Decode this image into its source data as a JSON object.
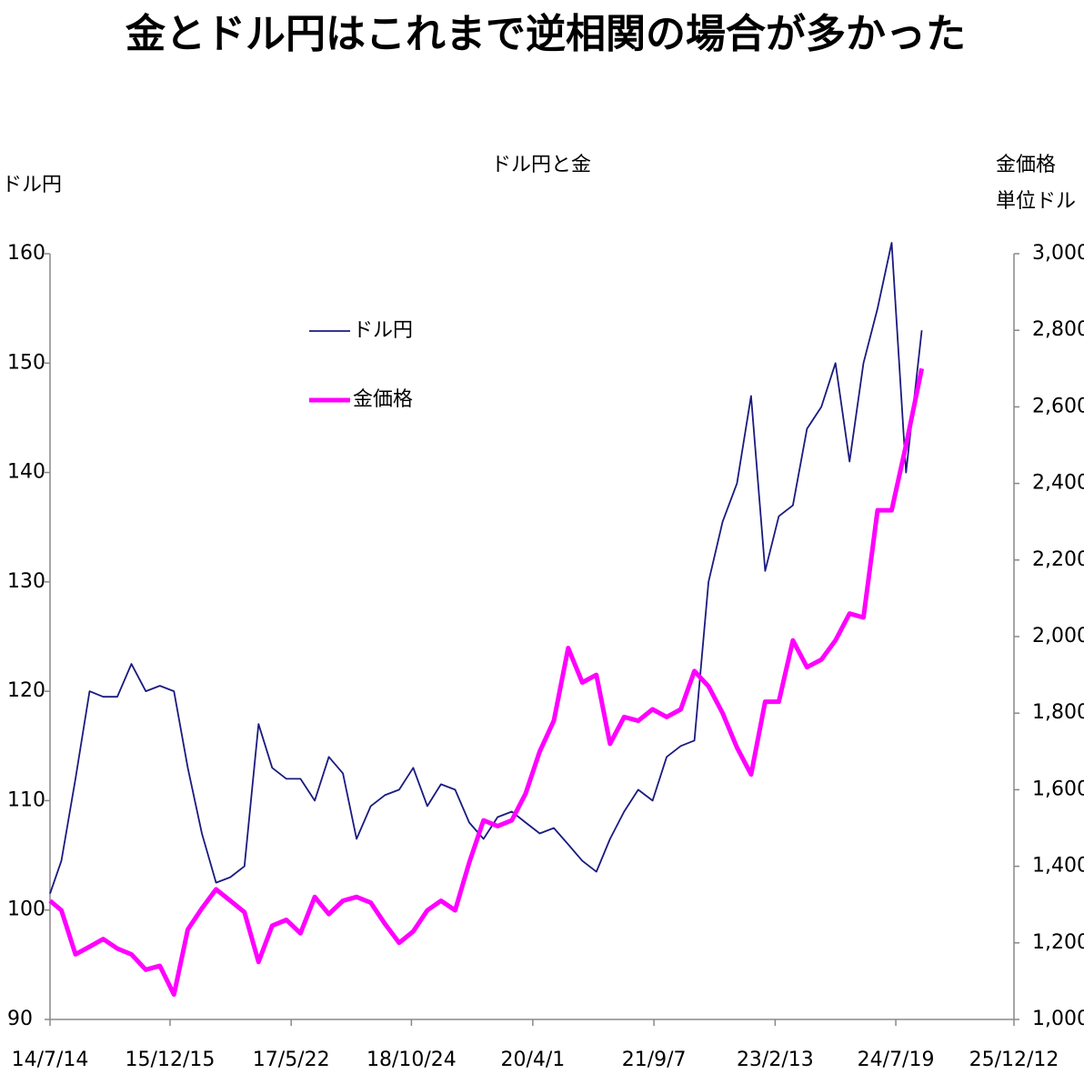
{
  "chart_data": {
    "type": "line",
    "title": "金とドル円はこれまで逆相関の場合が多かった",
    "subtitle": "ドル円と金",
    "ylabel": "ドル円",
    "y2label": [
      "金価格",
      "単位ドル"
    ],
    "x": [
      "14/7/14",
      "14/9/1",
      "14/11/1",
      "15/1/1",
      "15/3/1",
      "15/5/1",
      "15/7/1",
      "15/9/1",
      "15/11/1",
      "16/1/1",
      "16/3/1",
      "16/5/1",
      "16/7/1",
      "16/9/1",
      "16/11/1",
      "17/1/1",
      "17/3/1",
      "17/5/1",
      "17/7/1",
      "17/9/1",
      "17/11/1",
      "18/1/1",
      "18/3/1",
      "18/5/1",
      "18/7/1",
      "18/9/1",
      "18/11/1",
      "19/1/1",
      "19/3/1",
      "19/5/1",
      "19/7/1",
      "19/9/1",
      "19/11/1",
      "20/1/1",
      "20/3/1",
      "20/5/1",
      "20/7/1",
      "20/9/1",
      "20/11/1",
      "21/1/1",
      "21/3/1",
      "21/5/1",
      "21/7/1",
      "21/9/1",
      "21/11/1",
      "22/1/1",
      "22/3/1",
      "22/5/1",
      "22/7/1",
      "22/9/1",
      "22/11/1",
      "23/1/1",
      "23/3/1",
      "23/5/1",
      "23/7/1",
      "23/9/1",
      "23/11/1",
      "24/1/1",
      "24/3/1",
      "24/5/1",
      "24/7/1",
      "24/9/1",
      "24/11/8"
    ],
    "series": [
      {
        "name": "ドル円",
        "color": "#1a1a80",
        "axis": "y",
        "values": [
          101.5,
          104.5,
          112,
          120,
          119.5,
          119.5,
          122.5,
          120,
          120.5,
          120,
          113,
          107,
          102.5,
          103,
          104,
          117,
          113,
          112,
          112,
          110,
          114,
          112.5,
          106.5,
          109.5,
          110.5,
          111,
          113,
          109.5,
          111.5,
          111,
          108,
          106.5,
          108.5,
          109,
          108,
          107,
          107.5,
          106,
          104.5,
          103.5,
          106.5,
          109,
          111,
          110,
          114,
          115,
          115.5,
          130,
          135.5,
          139,
          147,
          131,
          136,
          137,
          144,
          146,
          150,
          141,
          150,
          155,
          161,
          140,
          153
        ]
      },
      {
        "name": "金価格",
        "color": "#ff00ff",
        "axis": "y2",
        "values": [
          1310,
          1285,
          1170,
          1190,
          1210,
          1185,
          1170,
          1130,
          1140,
          1065,
          1235,
          1290,
          1340,
          1310,
          1280,
          1150,
          1245,
          1260,
          1225,
          1320,
          1275,
          1310,
          1320,
          1305,
          1250,
          1200,
          1230,
          1285,
          1310,
          1285,
          1410,
          1520,
          1505,
          1520,
          1590,
          1700,
          1780,
          1970,
          1880,
          1900,
          1720,
          1790,
          1780,
          1810,
          1790,
          1810,
          1910,
          1870,
          1800,
          1710,
          1640,
          1830,
          1830,
          1990,
          1920,
          1940,
          1990,
          2060,
          2050,
          2330,
          2330,
          2500,
          2700
        ]
      }
    ],
    "xlim": [
      "14/7/14",
      "25/12/12"
    ],
    "xticks": [
      "14/7/14",
      "15/12/15",
      "17/5/22",
      "18/10/24",
      "20/4/1",
      "21/9/7",
      "23/2/13",
      "24/7/19",
      "25/12/12"
    ],
    "ylim": [
      90,
      160
    ],
    "yticks": [
      90,
      100,
      110,
      120,
      130,
      140,
      150,
      160
    ],
    "y2lim": [
      1000,
      3000
    ],
    "y2ticks": [
      {
        "value": 1000,
        "label": "1,000"
      },
      {
        "value": 1200,
        "label": "1,200"
      },
      {
        "value": 1400,
        "label": "1,400"
      },
      {
        "value": 1600,
        "label": "1,600"
      },
      {
        "value": 1800,
        "label": "1,800"
      },
      {
        "value": 2000,
        "label": "2,000"
      },
      {
        "value": 2200,
        "label": "2,200"
      },
      {
        "value": 2400,
        "label": "2,400"
      },
      {
        "value": 2600,
        "label": "2,600"
      },
      {
        "value": 2800,
        "label": "2,800"
      },
      {
        "value": 3000,
        "label": "3,000"
      }
    ],
    "grid": false
  }
}
